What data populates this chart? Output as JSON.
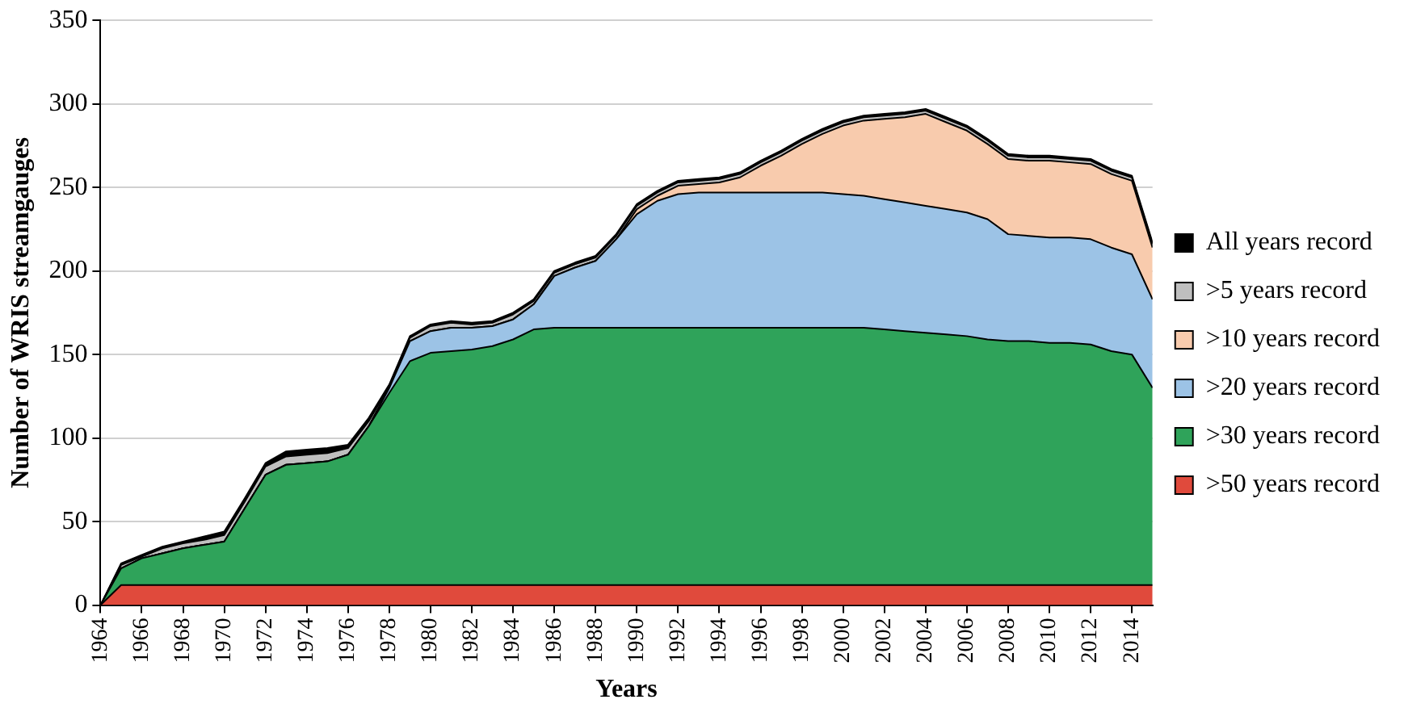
{
  "chart_data": {
    "type": "area",
    "stacked": true,
    "xlabel": "Years",
    "ylabel": "Number of WRIS streamgauges",
    "x": [
      1964,
      1965,
      1966,
      1967,
      1968,
      1969,
      1970,
      1971,
      1972,
      1973,
      1974,
      1975,
      1976,
      1977,
      1978,
      1979,
      1980,
      1981,
      1982,
      1983,
      1984,
      1985,
      1986,
      1987,
      1988,
      1989,
      1990,
      1991,
      1992,
      1993,
      1994,
      1995,
      1996,
      1997,
      1998,
      1999,
      2000,
      2001,
      2002,
      2003,
      2004,
      2005,
      2006,
      2007,
      2008,
      2009,
      2010,
      2011,
      2012,
      2013,
      2014,
      2015
    ],
    "xlim": [
      1964,
      2015
    ],
    "xticks": [
      1964,
      1966,
      1968,
      1970,
      1972,
      1974,
      1976,
      1978,
      1980,
      1982,
      1984,
      1986,
      1988,
      1990,
      1992,
      1994,
      1996,
      1998,
      2000,
      2002,
      2004,
      2006,
      2008,
      2010,
      2012,
      2014
    ],
    "ylim": [
      0,
      350
    ],
    "yticks": [
      0,
      50,
      100,
      150,
      200,
      250,
      300,
      350
    ],
    "grid": "y",
    "legend": "right",
    "series": [
      {
        "name": ">50 years record",
        "color": "#e04a3c",
        "values": [
          0,
          12,
          12,
          12,
          12,
          12,
          12,
          12,
          12,
          12,
          12,
          12,
          12,
          12,
          12,
          12,
          12,
          12,
          12,
          12,
          12,
          12,
          12,
          12,
          12,
          12,
          12,
          12,
          12,
          12,
          12,
          12,
          12,
          12,
          12,
          12,
          12,
          12,
          12,
          12,
          12,
          12,
          12,
          12,
          12,
          12,
          12,
          12,
          12,
          12,
          12,
          12
        ]
      },
      {
        "name": ">30 years record",
        "color": "#2fa35a",
        "values": [
          0,
          10,
          16,
          19,
          22,
          24,
          26,
          46,
          66,
          72,
          73,
          74,
          78,
          95,
          115,
          134,
          139,
          140,
          141,
          143,
          147,
          153,
          154,
          154,
          154,
          154,
          154,
          154,
          154,
          154,
          154,
          154,
          154,
          154,
          154,
          154,
          154,
          154,
          153,
          152,
          151,
          150,
          149,
          147,
          146,
          146,
          145,
          145,
          144,
          140,
          138,
          118
        ]
      },
      {
        "name": ">20 years record",
        "color": "#9cc3e6",
        "values": [
          0,
          0,
          0,
          0,
          0,
          0,
          0,
          0,
          0,
          0,
          0,
          0,
          0,
          0,
          3,
          12,
          13,
          14,
          13,
          12,
          12,
          15,
          31,
          36,
          40,
          53,
          68,
          76,
          80,
          81,
          81,
          81,
          81,
          81,
          81,
          81,
          80,
          79,
          78,
          77,
          76,
          75,
          74,
          72,
          64,
          63,
          63,
          63,
          63,
          62,
          60,
          53
        ]
      },
      {
        "name": ">10 years record",
        "color": "#f8cbad",
        "values": [
          0,
          0,
          0,
          0,
          0,
          0,
          0,
          0,
          0,
          0,
          0,
          0,
          0,
          0,
          0,
          0,
          0,
          0,
          0,
          0,
          0,
          0,
          0,
          0,
          0,
          0,
          3,
          3,
          5,
          5,
          6,
          9,
          16,
          22,
          29,
          35,
          41,
          45,
          48,
          51,
          55,
          52,
          49,
          45,
          45,
          45,
          46,
          45,
          45,
          44,
          44,
          31
        ]
      },
      {
        "name": ">5 years record",
        "color": "#bfbfbf",
        "values": [
          0,
          2,
          1,
          3,
          3,
          3,
          4,
          4,
          5,
          5,
          5,
          5,
          4,
          3,
          1,
          2,
          3,
          3,
          2,
          2,
          3,
          2,
          2,
          2,
          2,
          2,
          2,
          2,
          2,
          2,
          2,
          2,
          2,
          2,
          2,
          2,
          2,
          2,
          2,
          2,
          2,
          2,
          2,
          2,
          2,
          2,
          2,
          2,
          2,
          2,
          2,
          2
        ]
      },
      {
        "name": "All years record",
        "color": "#000000",
        "values": [
          0,
          1,
          1,
          1,
          1,
          2,
          2,
          2,
          2,
          3,
          3,
          3,
          2,
          2,
          1,
          1,
          1,
          1,
          1,
          1,
          1,
          1,
          1,
          1,
          1,
          1,
          1,
          1,
          1,
          1,
          1,
          1,
          1,
          1,
          1,
          1,
          1,
          1,
          1,
          1,
          1,
          1,
          1,
          1,
          1,
          1,
          1,
          1,
          1,
          1,
          1,
          1
        ]
      }
    ]
  }
}
